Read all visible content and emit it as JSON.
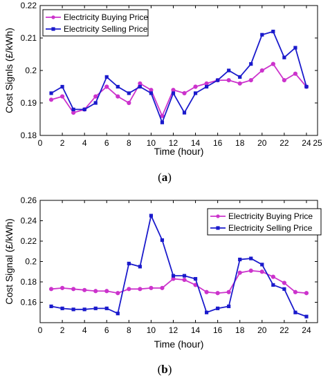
{
  "chart_data": [
    {
      "type": "line",
      "caption": "(a)",
      "xlabel": "Time (hour)",
      "ylabel": "Cost Signls (£/kWh)",
      "xlim": [
        0,
        25
      ],
      "ylim": [
        0.18,
        0.22
      ],
      "xticks": [
        0,
        2,
        4,
        6,
        8,
        10,
        12,
        14,
        16,
        18,
        20,
        22,
        24,
        25
      ],
      "yticks": [
        0.18,
        0.19,
        0.2,
        0.21,
        0.22
      ],
      "ytick_labels": [
        "0.18",
        "0.19",
        "0.2",
        "0.21",
        "0.22"
      ],
      "grid": false,
      "legend_position": "top-left",
      "x": [
        1,
        2,
        3,
        4,
        5,
        6,
        7,
        8,
        9,
        10,
        11,
        12,
        13,
        14,
        15,
        16,
        17,
        18,
        19,
        20,
        21,
        22,
        23,
        24
      ],
      "series": [
        {
          "name": "Electricity Buying Price",
          "color": "#cc33cc",
          "marker": "circle",
          "values": [
            0.191,
            0.192,
            0.187,
            0.188,
            0.192,
            0.195,
            0.192,
            0.19,
            0.196,
            0.194,
            0.186,
            0.194,
            0.193,
            0.195,
            0.196,
            0.197,
            0.197,
            0.196,
            0.197,
            0.2,
            0.202,
            0.197,
            0.199,
            0.195
          ]
        },
        {
          "name": "Electricity Selling Price",
          "color": "#1a1acc",
          "marker": "square",
          "values": [
            0.193,
            0.195,
            0.188,
            0.188,
            0.19,
            0.198,
            0.195,
            0.193,
            0.195,
            0.193,
            0.184,
            0.193,
            0.187,
            0.193,
            0.195,
            0.197,
            0.2,
            0.198,
            0.202,
            0.211,
            0.212,
            0.204,
            0.207,
            0.195
          ]
        }
      ]
    },
    {
      "type": "line",
      "caption": "(b)",
      "xlabel": "Time (hour)",
      "ylabel": "Cost Signal (£/kWh)",
      "xlim": [
        0,
        25
      ],
      "ylim": [
        0.14,
        0.26
      ],
      "xticks": [
        0,
        2,
        4,
        6,
        8,
        10,
        12,
        14,
        16,
        18,
        20,
        22,
        24
      ],
      "yticks": [
        0.16,
        0.18,
        0.2,
        0.22,
        0.24,
        0.26
      ],
      "ytick_labels": [
        "0.16",
        "0.18",
        "0.2",
        "0.22",
        "0.24",
        "0.26"
      ],
      "grid": false,
      "legend_position": "top-right",
      "x": [
        1,
        2,
        3,
        4,
        5,
        6,
        7,
        8,
        9,
        10,
        11,
        12,
        13,
        14,
        15,
        16,
        17,
        18,
        19,
        20,
        21,
        22,
        23,
        24
      ],
      "series": [
        {
          "name": "Electricity Buying Price",
          "color": "#cc33cc",
          "marker": "circle",
          "values": [
            0.173,
            0.174,
            0.173,
            0.172,
            0.171,
            0.171,
            0.169,
            0.173,
            0.173,
            0.174,
            0.174,
            0.183,
            0.182,
            0.177,
            0.17,
            0.169,
            0.17,
            0.189,
            0.191,
            0.19,
            0.185,
            0.179,
            0.17,
            0.169
          ]
        },
        {
          "name": "Electricity Selling Price",
          "color": "#1a1acc",
          "marker": "square",
          "values": [
            0.156,
            0.154,
            0.153,
            0.153,
            0.154,
            0.154,
            0.149,
            0.198,
            0.195,
            0.245,
            0.221,
            0.186,
            0.186,
            0.183,
            0.15,
            0.154,
            0.156,
            0.202,
            0.203,
            0.197,
            0.177,
            0.173,
            0.15,
            0.146
          ]
        }
      ]
    }
  ]
}
